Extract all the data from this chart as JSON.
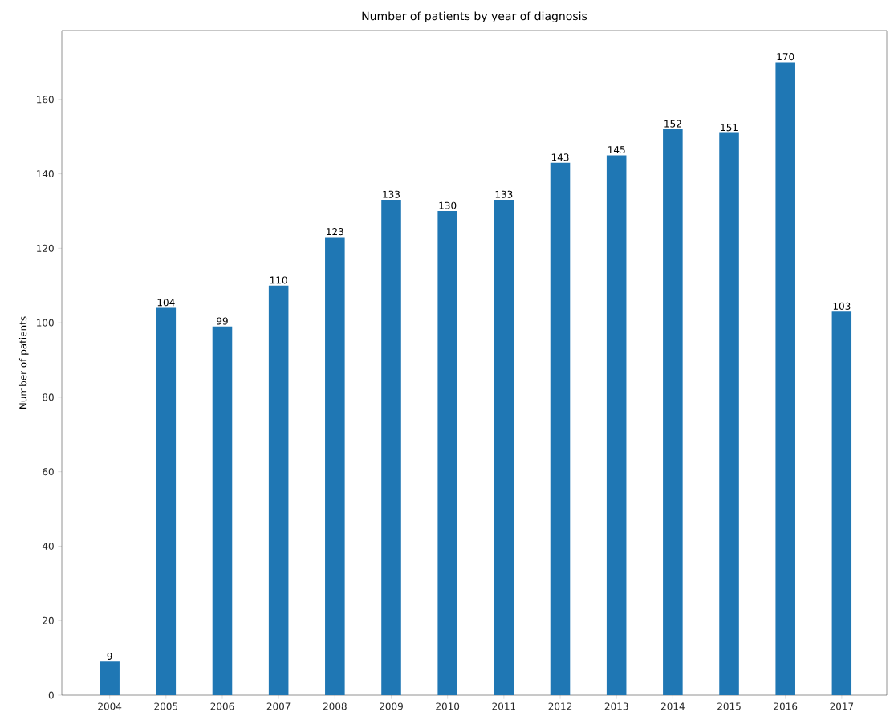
{
  "chart_data": {
    "type": "bar",
    "title": "Number of patients by year of diagnosis",
    "ylabel": "Number of patients",
    "categories": [
      "2004",
      "2005",
      "2006",
      "2007",
      "2008",
      "2009",
      "2010",
      "2011",
      "2012",
      "2013",
      "2014",
      "2015",
      "2016",
      "2017"
    ],
    "values": [
      9,
      104,
      99,
      110,
      123,
      133,
      130,
      133,
      143,
      145,
      152,
      151,
      170,
      103
    ],
    "color": "#1f77b4",
    "ylim": [
      0,
      178.5
    ],
    "yticks": [
      0,
      20,
      40,
      60,
      80,
      100,
      120,
      140,
      160
    ],
    "data_labels": true,
    "grid": false
  }
}
